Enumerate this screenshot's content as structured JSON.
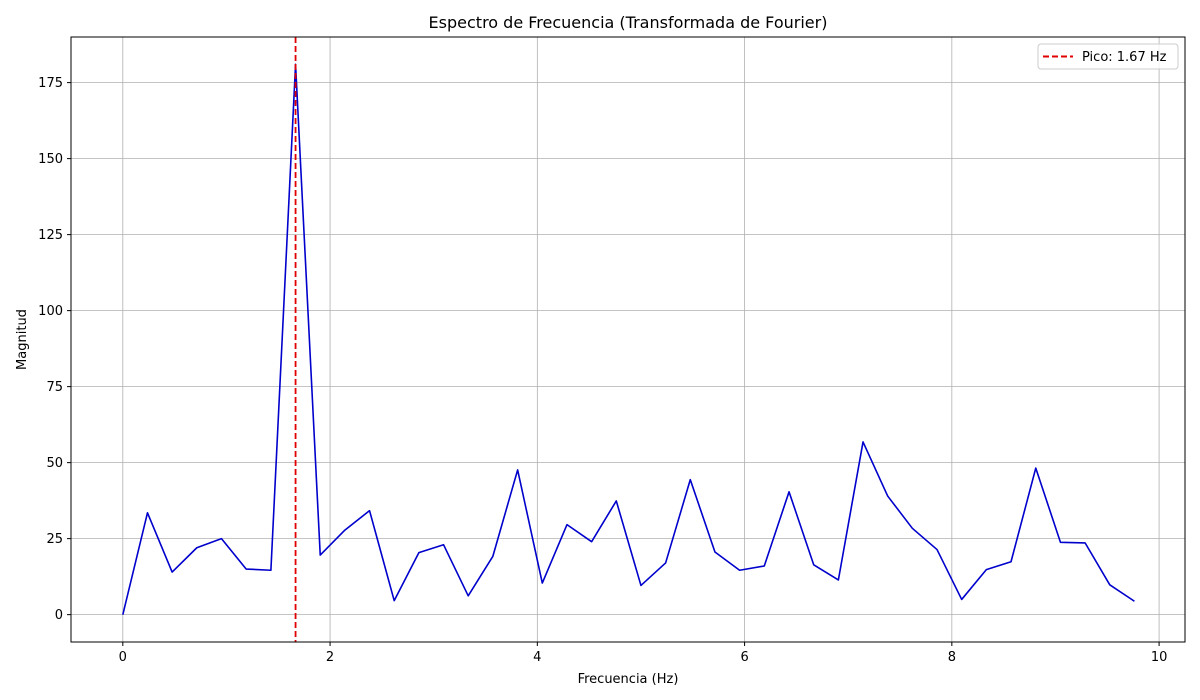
{
  "chart_data": {
    "type": "line",
    "title": "Espectro de Frecuencia (Transformada de Fourier)",
    "xlabel": "Frecuencia (Hz)",
    "ylabel": "Magnitud",
    "xlim": [
      -0.5,
      10.25
    ],
    "ylim": [
      -9,
      190
    ],
    "xticks": [
      0,
      2,
      4,
      6,
      8,
      10
    ],
    "yticks": [
      0,
      25,
      50,
      75,
      100,
      125,
      150,
      175
    ],
    "grid": true,
    "legend_position": "upper right",
    "series": [
      {
        "color": "#0000cc",
        "x": [
          0.0,
          0.238,
          0.476,
          0.714,
          0.952,
          1.19,
          1.429,
          1.667,
          1.905,
          2.143,
          2.381,
          2.619,
          2.857,
          3.095,
          3.333,
          3.571,
          3.81,
          4.048,
          4.286,
          4.524,
          4.762,
          5.0,
          5.238,
          5.476,
          5.714,
          5.952,
          6.19,
          6.429,
          6.667,
          6.905,
          7.143,
          7.381,
          7.619,
          7.857,
          8.095,
          8.333,
          8.571,
          8.81,
          9.048,
          9.286,
          9.524,
          9.762
        ],
        "y": [
          0.0,
          33.5,
          14.0,
          22.0,
          25.0,
          15.0,
          14.6,
          181.0,
          19.6,
          27.8,
          34.2,
          4.6,
          20.4,
          23.0,
          6.2,
          19.2,
          47.6,
          10.4,
          29.6,
          24.0,
          37.4,
          9.6,
          17.0,
          44.4,
          20.6,
          14.6,
          16.0,
          40.4,
          16.4,
          11.4,
          56.8,
          39.0,
          28.4,
          21.4,
          5.0,
          14.8,
          17.4,
          48.2,
          23.8,
          23.6,
          9.8,
          4.4
        ]
      }
    ],
    "reference_lines": [
      {
        "orientation": "vertical",
        "x": 1.667,
        "color": "#e00000",
        "style": "dashed",
        "label": "Pico: 1.67 Hz"
      }
    ]
  }
}
